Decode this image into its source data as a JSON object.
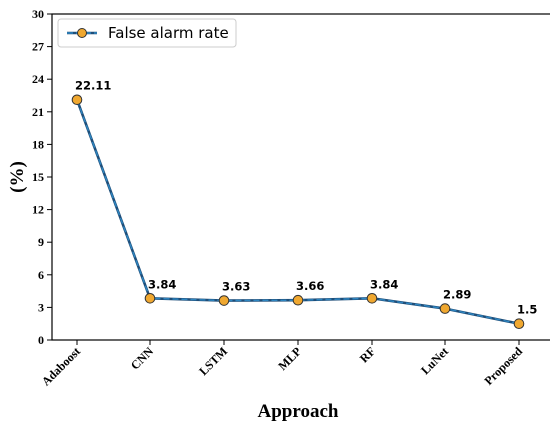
{
  "chart_data": {
    "type": "line",
    "categories": [
      "Adaboost",
      "CNN",
      "LSTM",
      "MLP",
      "RF",
      "LuNet",
      "Proposed"
    ],
    "series": [
      {
        "name": "False alarm rate",
        "values": [
          22.11,
          3.84,
          3.63,
          3.66,
          3.84,
          2.89,
          1.5
        ],
        "data_labels": [
          "22.11",
          "3.84",
          "3.63",
          "3.66",
          "3.84",
          "2.89",
          "1.5"
        ],
        "color": "#1f4e79",
        "dash_color": "#2e86c1",
        "marker_color": "#f0a830",
        "marker_edge": "#333333"
      }
    ],
    "xlabel": "Approach",
    "ylabel": "(%)",
    "ylim": [
      0,
      30
    ],
    "yticks": [
      0,
      3,
      6,
      9,
      12,
      15,
      18,
      21,
      24,
      27,
      30
    ],
    "ytick_labels": [
      "0",
      "3",
      "6",
      "9",
      "12",
      "15",
      "18",
      "21",
      "24",
      "27",
      "30"
    ],
    "grid": false,
    "legend_position": "top-left"
  }
}
